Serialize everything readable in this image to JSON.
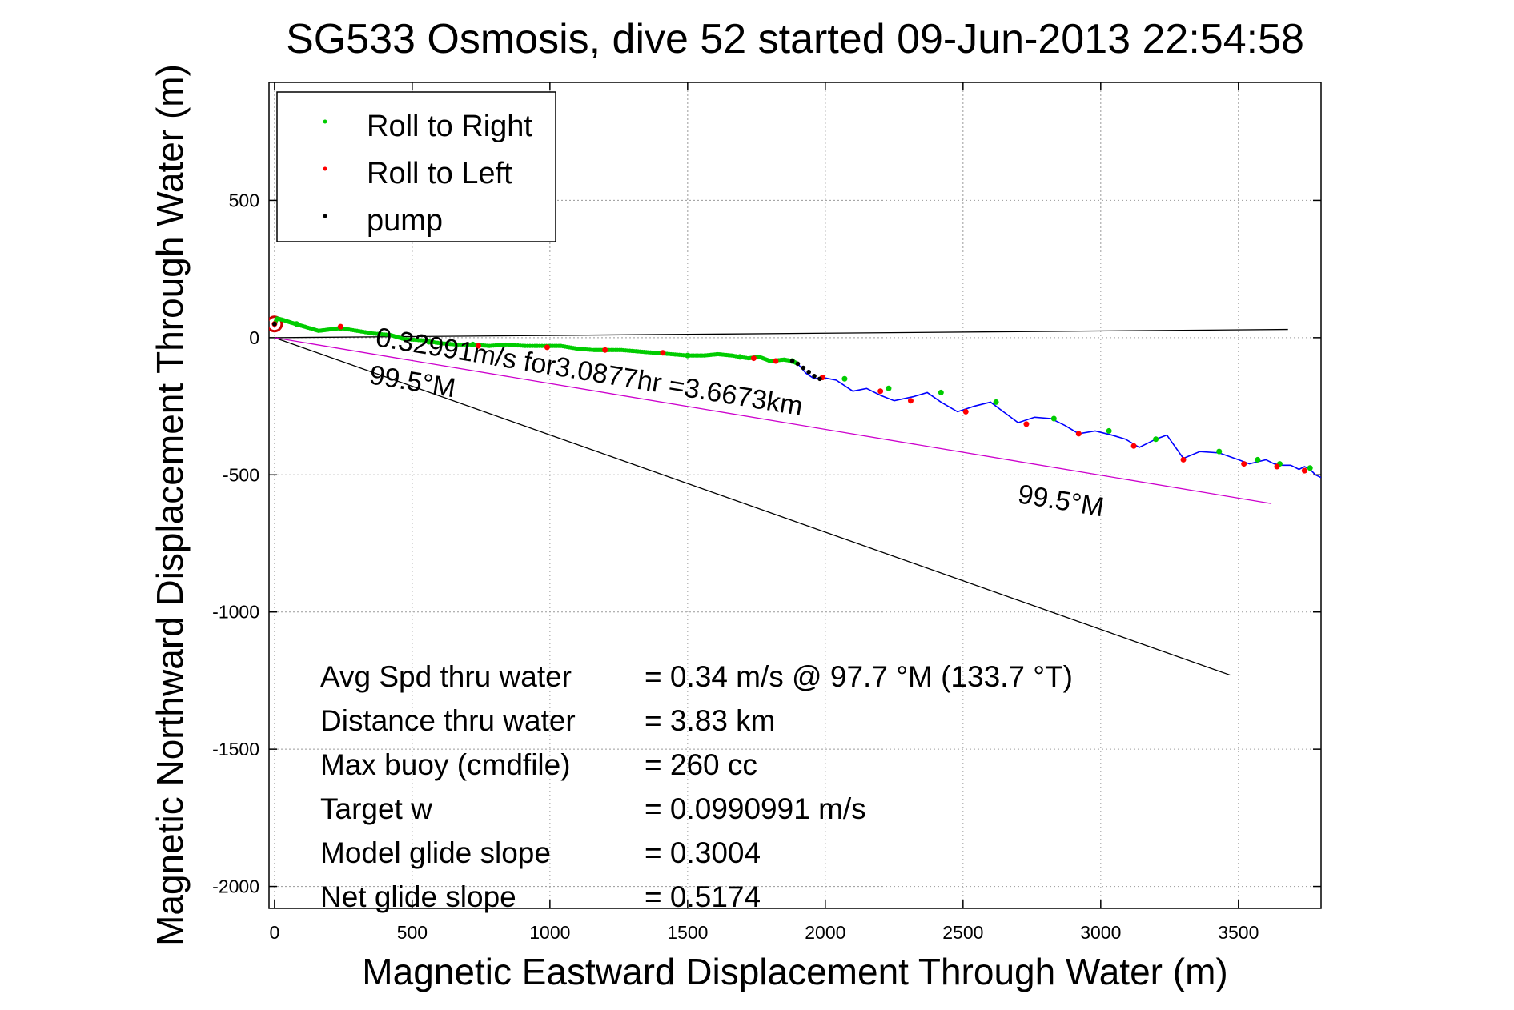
{
  "chart_data": {
    "type": "line",
    "title": "SG533 Osmosis, dive 52 started 09-Jun-2013 22:54:58",
    "xlabel": "Magnetic Eastward Displacement Through Water (m)",
    "ylabel": "Magnetic Northward Displacement Through Water (m)",
    "xlim": [
      -20,
      3800
    ],
    "ylim": [
      -2080,
      930
    ],
    "x_ticks": [
      0,
      500,
      1000,
      1500,
      2000,
      2500,
      3000,
      3500
    ],
    "y_ticks": [
      500,
      0,
      -500,
      -1000,
      -1500,
      -2000
    ],
    "grid": true,
    "legend": {
      "placement": "top-left",
      "entries": [
        {
          "label": "Roll to Right",
          "color": "#00cc00"
        },
        {
          "label": "Roll to Left",
          "color": "#ff0000"
        },
        {
          "label": "pump",
          "color": "#000000"
        }
      ]
    },
    "colors": {
      "track": "#0000ff",
      "roll_right": "#00cc00",
      "roll_left": "#ff0000",
      "pump": "#000000",
      "heading_line": "#cc00cc",
      "reference_line": "#000000",
      "start_marker": "#cc0000"
    },
    "track": {
      "x": [
        0,
        10,
        30,
        60,
        110,
        160,
        200,
        240,
        300,
        360,
        420,
        470,
        540,
        600,
        660,
        720,
        780,
        840,
        910,
        980,
        1040,
        1100,
        1160,
        1200,
        1260,
        1320,
        1380,
        1440,
        1500,
        1560,
        1610,
        1660,
        1720,
        1760,
        1800,
        1850,
        1880,
        1900,
        1930,
        1960,
        1990,
        2040,
        2100,
        2150,
        2200,
        2250,
        2320,
        2370,
        2420,
        2480,
        2540,
        2600,
        2640,
        2700,
        2760,
        2820,
        2870,
        2920,
        2980,
        3040,
        3090,
        3140,
        3200,
        3240,
        3300,
        3360,
        3430,
        3500,
        3540,
        3580,
        3600,
        3630,
        3660,
        3690,
        3720,
        3740,
        3760,
        3780,
        3800
      ],
      "y": [
        50,
        70,
        65,
        55,
        40,
        25,
        30,
        35,
        25,
        15,
        10,
        -5,
        -10,
        -20,
        -25,
        -25,
        -30,
        -25,
        -30,
        -30,
        -30,
        -40,
        -45,
        -45,
        -45,
        -50,
        -55,
        -60,
        -65,
        -65,
        -60,
        -65,
        -75,
        -70,
        -85,
        -80,
        -85,
        -95,
        -130,
        -150,
        -145,
        -155,
        -195,
        -185,
        -210,
        -230,
        -215,
        -200,
        -235,
        -270,
        -250,
        -235,
        -265,
        -310,
        -290,
        -295,
        -320,
        -350,
        -340,
        -355,
        -370,
        -400,
        -370,
        -355,
        -440,
        -415,
        -420,
        -445,
        -460,
        -450,
        -445,
        -460,
        -465,
        -465,
        -480,
        -470,
        -480,
        -500,
        -510
      ]
    },
    "roll_right_points": {
      "x": [
        80,
        240,
        560,
        720,
        1500,
        1690,
        1880,
        2070,
        2230,
        2420,
        2620,
        2830,
        3030,
        3200,
        3430,
        3570,
        3650,
        3760
      ],
      "y": [
        50,
        35,
        -15,
        -25,
        -65,
        -70,
        -85,
        -150,
        -185,
        -200,
        -235,
        -295,
        -340,
        -370,
        -415,
        -445,
        -460,
        -475
      ]
    },
    "roll_left_points": {
      "x": [
        0,
        240,
        740,
        990,
        1200,
        1410,
        1740,
        1820,
        1990,
        2200,
        2310,
        2510,
        2730,
        2920,
        3120,
        3300,
        3520,
        3640,
        3740
      ],
      "y": [
        50,
        40,
        -30,
        -35,
        -45,
        -55,
        -75,
        -85,
        -145,
        -195,
        -230,
        -270,
        -315,
        -350,
        -395,
        -445,
        -460,
        -470,
        -485
      ]
    },
    "pump_points": {
      "x": [
        0,
        1880,
        1900,
        1920,
        1940,
        1960,
        1980
      ],
      "y": [
        50,
        -85,
        -95,
        -110,
        -125,
        -140,
        -150
      ]
    },
    "heading_line": {
      "x": [
        0,
        3620
      ],
      "y": [
        0,
        -605
      ]
    },
    "reference_line_east": {
      "x": [
        0,
        3680
      ],
      "y": [
        0,
        30
      ]
    },
    "reference_line_diag": {
      "x": [
        0,
        3470
      ],
      "y": [
        0,
        -1230
      ]
    },
    "annotations": {
      "heading_label_near": "99.5°M",
      "heading_label_far": "99.5°M",
      "speed_label": "0.32991m/s for3.0877hr =3.6673km"
    },
    "stats": [
      {
        "label": "Avg Spd thru water",
        "value": "=  0.34 m/s @  97.7 °M (133.7 °T)"
      },
      {
        "label": "Distance thru water",
        "value": "=  3.83 km"
      },
      {
        "label": "Max buoy (cmdfile)",
        "value": "= 260 cc"
      },
      {
        "label": "Target w",
        "value": "= 0.0990991 m/s"
      },
      {
        "label": "Model glide slope",
        "value": "= 0.3004"
      },
      {
        "label": "Net glide slope",
        "value": "= 0.5174"
      }
    ]
  }
}
